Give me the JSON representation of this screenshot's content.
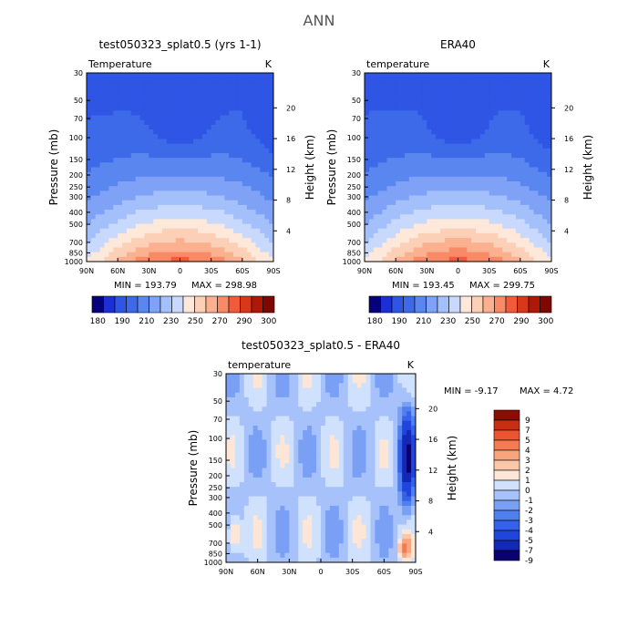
{
  "figure": {
    "title": "ANN"
  },
  "colors": {
    "top_scale": [
      "#08007a",
      "#1c2fd4",
      "#2f55e5",
      "#3c6ae8",
      "#5a86f0",
      "#7fa2f6",
      "#a4c0fb",
      "#c8d9fd",
      "#fde8da",
      "#fbd0b6",
      "#fbb08f",
      "#f88a66",
      "#f25a3c",
      "#d63818",
      "#b01806",
      "#7e0700"
    ],
    "diff_scale": [
      "#0a0070",
      "#1428b8",
      "#2045dd",
      "#3662e8",
      "#5080f0",
      "#7aa0f5",
      "#a7c2fa",
      "#cfe1fd",
      "#fde6d6",
      "#fbc7a8",
      "#f8a47c",
      "#f57c52",
      "#ec5530",
      "#c82e12",
      "#8c0b02"
    ],
    "frame": "#000000"
  },
  "chart_data": [
    {
      "id": "model",
      "type": "contour",
      "title": "test050323_splat0.5 (yrs 1-1)",
      "field_label": "Temperature",
      "units": "K",
      "ylabel": "Pressure (mb)",
      "ylabel_right": "Height (km)",
      "x_ticks": [
        "90N",
        "60N",
        "30N",
        "0",
        "30S",
        "60S",
        "90S"
      ],
      "y_ticks": [
        "30",
        "50",
        "70",
        "100",
        "150",
        "200",
        "250",
        "300",
        "400",
        "500",
        "700",
        "850",
        "1000"
      ],
      "y_ticks_right": [
        "20",
        "16",
        "12",
        "8",
        "4"
      ],
      "stats": {
        "min_label": "MIN = 193.79",
        "max_label": "MAX = 298.98",
        "min": 193.79,
        "max": 298.98
      },
      "colorbar_labels": [
        "180",
        "190",
        "210",
        "230",
        "250",
        "270",
        "290",
        "300"
      ]
    },
    {
      "id": "obs",
      "type": "contour",
      "title": "ERA40",
      "field_label": "temperature",
      "units": "K",
      "ylabel": "Pressure (mb)",
      "ylabel_right": "Height (km)",
      "x_ticks": [
        "90N",
        "60N",
        "30N",
        "0",
        "30S",
        "60S",
        "90S"
      ],
      "y_ticks": [
        "30",
        "50",
        "70",
        "100",
        "150",
        "200",
        "250",
        "300",
        "400",
        "500",
        "700",
        "850",
        "1000"
      ],
      "y_ticks_right": [
        "20",
        "16",
        "12",
        "8",
        "4"
      ],
      "stats": {
        "min_label": "MIN = 193.45",
        "max_label": "MAX = 299.75",
        "min": 193.45,
        "max": 299.75
      },
      "colorbar_labels": [
        "180",
        "190",
        "210",
        "230",
        "250",
        "270",
        "290",
        "300"
      ]
    },
    {
      "id": "diff",
      "type": "contour",
      "title": "test050323_splat0.5 - ERA40",
      "field_label": "temperature",
      "units": "K",
      "ylabel": "Pressure (mb)",
      "ylabel_right": "Height (km)",
      "x_ticks": [
        "90N",
        "60N",
        "30N",
        "0",
        "30S",
        "60S",
        "90S"
      ],
      "y_ticks": [
        "30",
        "50",
        "70",
        "100",
        "150",
        "200",
        "250",
        "300",
        "400",
        "500",
        "700",
        "850",
        "1000"
      ],
      "y_ticks_right": [
        "20",
        "16",
        "12",
        "8",
        "4"
      ],
      "stats": {
        "min_label": "MIN = -9.17",
        "max_label": "MAX = 4.72",
        "min": -9.17,
        "max": 4.72
      },
      "colorbar_labels": [
        "9",
        "7",
        "5",
        "4",
        "3",
        "2",
        "1",
        "0",
        "-1",
        "-2",
        "-3",
        "-4",
        "-5",
        "-7",
        "-9"
      ]
    }
  ]
}
